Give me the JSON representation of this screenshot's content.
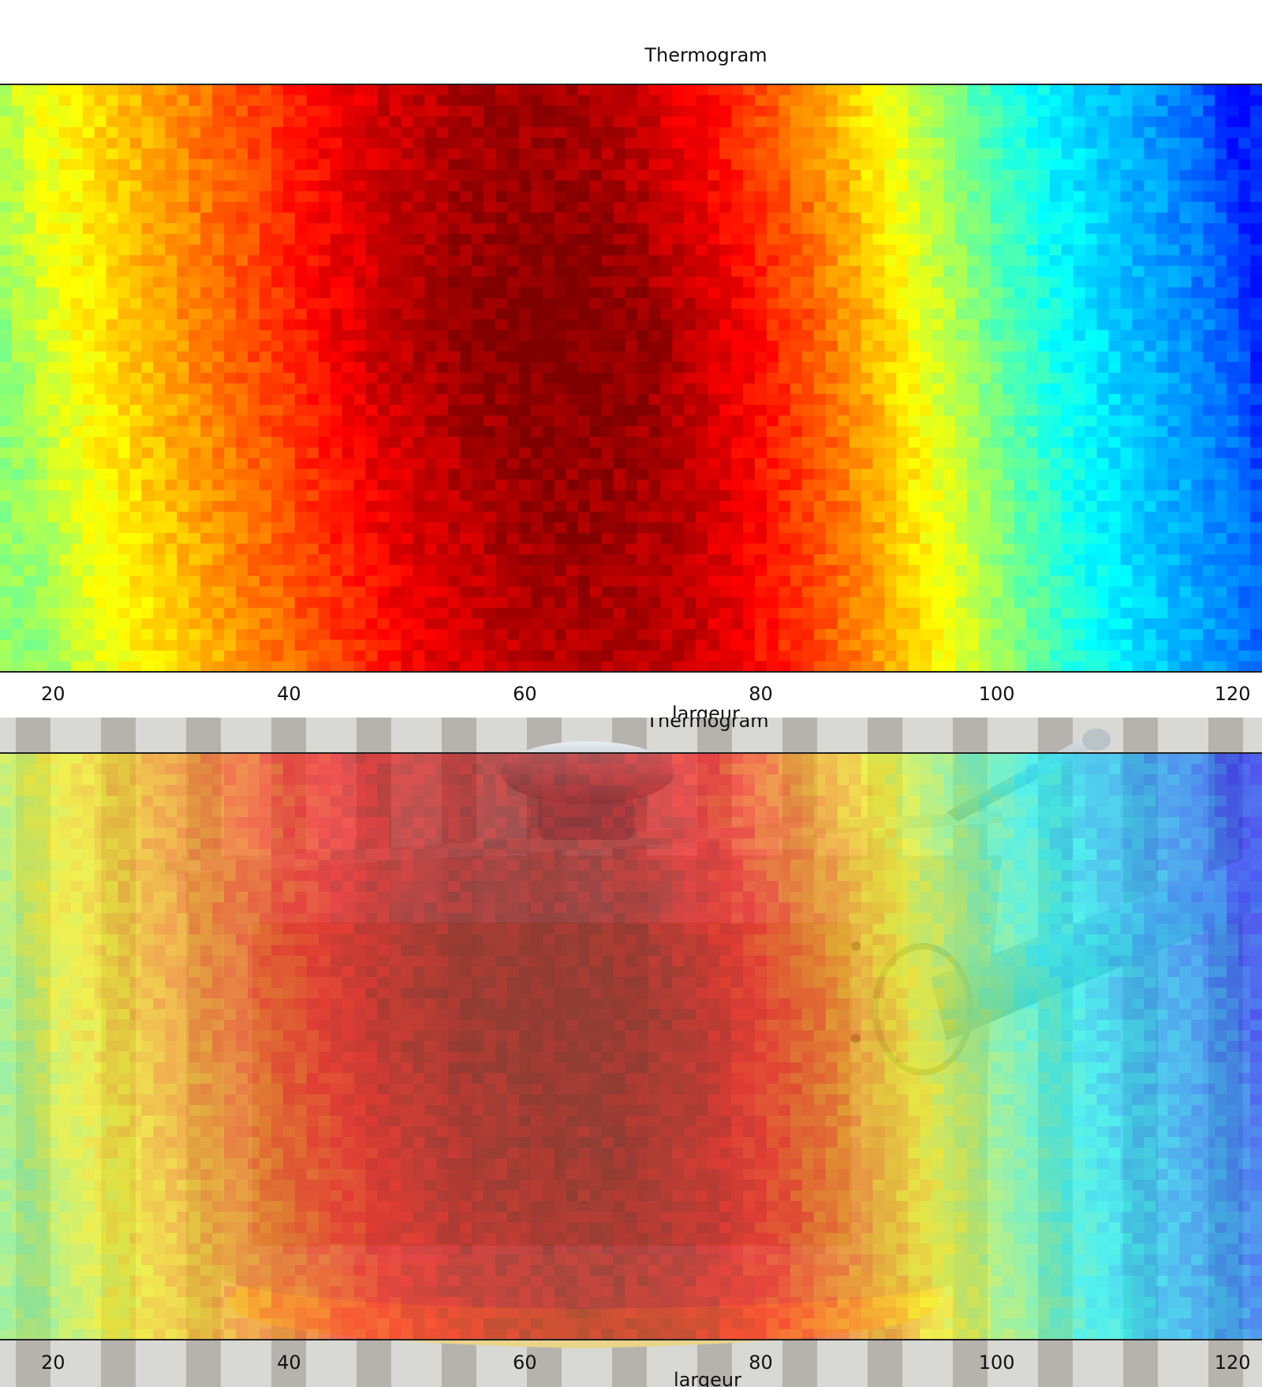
{
  "chart_data": [
    {
      "type": "heatmap",
      "title": "Thermogram",
      "xlabel": "largeur",
      "ylabel": "",
      "xticks": [
        20,
        40,
        60,
        80,
        100,
        120
      ],
      "xlim": [
        15.5,
        122.5
      ],
      "colormap": "jet",
      "grid": false,
      "value_profile": {
        "description_units": "normalized temperature 0 (cold, blue) to 1 (hot, dark red)",
        "hotspot_x": 63,
        "x": [
          16,
          20,
          25,
          30,
          35,
          40,
          45,
          50,
          55,
          60,
          65,
          70,
          75,
          80,
          85,
          90,
          95,
          100,
          105,
          110,
          115,
          120,
          122
        ],
        "v": [
          0.52,
          0.6,
          0.66,
          0.72,
          0.78,
          0.84,
          0.9,
          0.95,
          0.98,
          1.0,
          1.0,
          0.98,
          0.93,
          0.86,
          0.78,
          0.68,
          0.58,
          0.47,
          0.39,
          0.33,
          0.28,
          0.22,
          0.16
        ]
      }
    },
    {
      "type": "heatmap",
      "title": "Thermogram",
      "xlabel": "largeur",
      "ylabel": "",
      "xticks": [
        20,
        40,
        60,
        80,
        100,
        120
      ],
      "xlim": [
        15.5,
        122.5
      ],
      "colormap": "jet",
      "overlay": "semi-transparent thermogram over photograph of a glass saucepan with lid",
      "grid": false
    }
  ]
}
